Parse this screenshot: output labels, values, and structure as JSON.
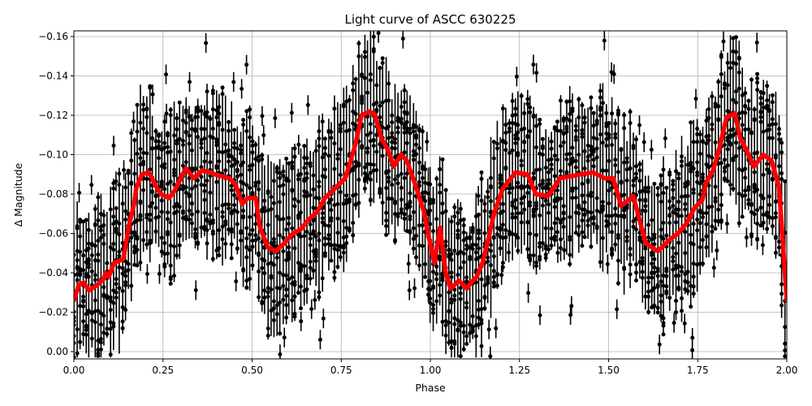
{
  "chart_data": {
    "type": "scatter",
    "title": "Light curve of ASCC 630225",
    "xlabel": "Phase",
    "ylabel": "Δ Magnitude",
    "xlim": [
      0.0,
      2.0
    ],
    "ylim": [
      0.003,
      -0.164
    ],
    "y_inverted": true,
    "grid": true,
    "x_ticks": [
      "0.00",
      "0.25",
      "0.50",
      "0.75",
      "1.00",
      "1.25",
      "1.50",
      "1.75",
      "2.00"
    ],
    "y_ticks": [
      "0.00",
      "−0.02",
      "−0.04",
      "−0.06",
      "−0.08",
      "−0.10",
      "−0.12",
      "−0.14",
      "−0.16"
    ],
    "series": [
      {
        "name": "observations (with error bars)",
        "style": "black points with vertical error bars",
        "color": "#000000",
        "description": "Dense phase-folded photometry spanning roughly 0.00 to -0.16 mag, repeated over two phase cycles"
      },
      {
        "name": "binned mean curve",
        "style": "thick red line",
        "color": "#ff0000",
        "x": [
          0.0,
          0.014,
          0.027,
          0.043,
          0.066,
          0.084,
          0.089,
          0.098,
          0.112,
          0.139,
          0.146,
          0.157,
          0.169,
          0.175,
          0.191,
          0.21,
          0.219,
          0.23,
          0.244,
          0.267,
          0.28,
          0.292,
          0.305,
          0.314,
          0.337,
          0.36,
          0.383,
          0.396,
          0.437,
          0.453,
          0.472,
          0.488,
          0.51,
          0.522,
          0.544,
          0.567,
          0.59,
          0.615,
          0.636,
          0.658,
          0.683,
          0.704,
          0.727,
          0.761,
          0.775,
          0.791,
          0.807,
          0.83,
          0.845,
          0.863,
          0.882,
          0.897,
          0.918,
          0.934,
          0.959,
          0.982,
          0.999,
          1.011,
          1.027,
          1.043,
          1.057,
          1.08,
          1.103,
          1.114,
          1.13,
          1.146,
          1.16,
          1.18,
          1.204,
          1.239,
          1.273,
          1.296,
          1.33,
          1.364,
          1.421,
          1.456,
          1.49,
          1.513,
          1.535,
          1.569,
          1.604,
          1.638,
          1.672,
          1.695,
          1.718,
          1.741,
          1.763,
          1.774,
          1.793,
          1.809,
          1.831,
          1.854,
          1.87,
          1.888,
          1.907,
          1.934,
          1.957,
          1.978,
          2.0
        ],
        "values": [
          -0.026,
          -0.034,
          -0.035,
          -0.031,
          -0.034,
          -0.037,
          -0.04,
          -0.038,
          -0.045,
          -0.047,
          -0.055,
          -0.066,
          -0.075,
          -0.083,
          -0.09,
          -0.091,
          -0.088,
          -0.084,
          -0.08,
          -0.078,
          -0.081,
          -0.085,
          -0.09,
          -0.093,
          -0.088,
          -0.092,
          -0.091,
          -0.09,
          -0.088,
          -0.085,
          -0.075,
          -0.078,
          -0.078,
          -0.063,
          -0.053,
          -0.051,
          -0.055,
          -0.06,
          -0.062,
          -0.067,
          -0.071,
          -0.078,
          -0.082,
          -0.088,
          -0.096,
          -0.106,
          -0.12,
          -0.122,
          -0.12,
          -0.108,
          -0.102,
          -0.094,
          -0.1,
          -0.097,
          -0.084,
          -0.071,
          -0.055,
          -0.045,
          -0.063,
          -0.04,
          -0.032,
          -0.036,
          -0.032,
          -0.035,
          -0.038,
          -0.045,
          -0.055,
          -0.071,
          -0.083,
          -0.091,
          -0.09,
          -0.08,
          -0.079,
          -0.088,
          -0.09,
          -0.091,
          -0.088,
          -0.088,
          -0.074,
          -0.079,
          -0.055,
          -0.051,
          -0.057,
          -0.06,
          -0.065,
          -0.073,
          -0.077,
          -0.086,
          -0.092,
          -0.102,
          -0.119,
          -0.121,
          -0.108,
          -0.102,
          -0.094,
          -0.1,
          -0.097,
          -0.084,
          -0.026
        ]
      }
    ],
    "legend": null
  }
}
